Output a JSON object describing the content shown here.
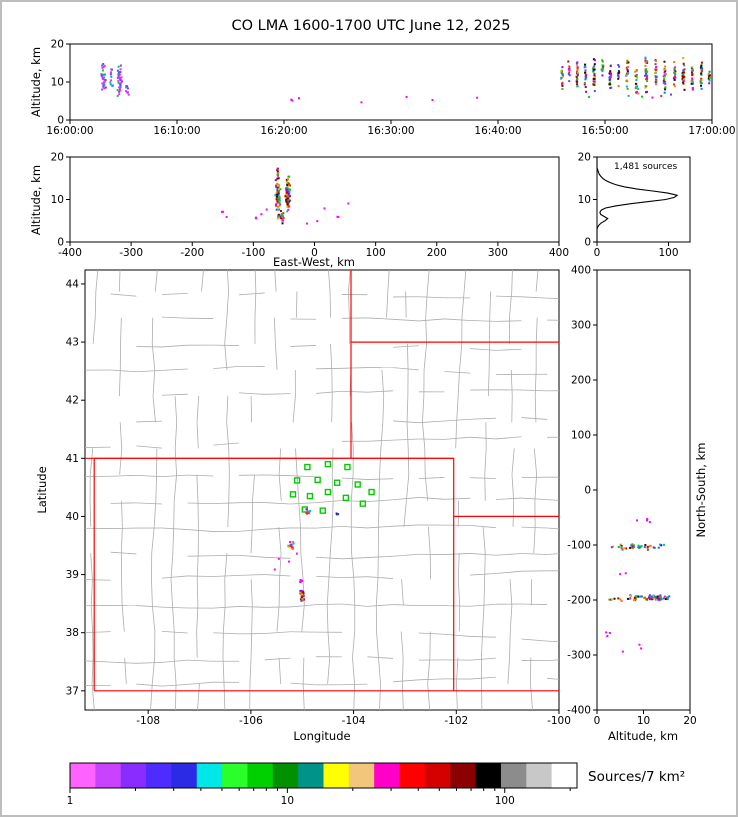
{
  "title": "CO LMA 1600-1700 UTC June 12, 2025",
  "labels": {
    "altitude_km": "Altitude, km",
    "east_west_km": "East-West, km",
    "north_south_km": "North-South, km",
    "longitude": "Longitude",
    "latitude": "Latitude",
    "sources_count": "1,481 sources",
    "colorbar_label": "Sources/7 km²"
  },
  "chart_data": {
    "palettes": {
      "multi": [
        "#FF00FF",
        "#9900EE",
        "#5544FF",
        "#0077FF",
        "#00BBBB",
        "#00CC00",
        "#55AA00",
        "#DDAA00",
        "#FF7700",
        "#FF2200",
        "#BB0000",
        "#550000",
        "#111111"
      ],
      "early": [
        "#FF22FF",
        "#FF22FF",
        "#CC33FF",
        "#8833FF",
        "#4455FF",
        "#00AADD",
        "#00CC44"
      ],
      "magenta": [
        "#FF00FF"
      ],
      "dark": [
        "#222288",
        "#000000",
        "#3333AA"
      ]
    },
    "time_altitude": {
      "type": "scatter",
      "xlim": [
        0,
        3600
      ],
      "xticks": [
        0,
        600,
        1200,
        1800,
        2400,
        3000,
        3600
      ],
      "xtick_labels": [
        "16:00:00",
        "16:10:00",
        "16:20:00",
        "16:30:00",
        "16:40:00",
        "16:50:00",
        "17:00:00"
      ],
      "ylim": [
        0,
        20
      ],
      "yticks": [
        0,
        10,
        20
      ],
      "clusters": [
        {
          "x": 190,
          "sx": 10,
          "y": 10,
          "sy": 4,
          "n": 30,
          "pal": "early"
        },
        {
          "x": 232,
          "sx": 6,
          "y": 12,
          "sy": 2.5,
          "n": 10,
          "pal": "early"
        },
        {
          "x": 278,
          "sx": 10,
          "y": 11,
          "sy": 3.8,
          "n": 32,
          "pal": "early"
        },
        {
          "x": 322,
          "sx": 6,
          "y": 8,
          "sy": 2.2,
          "n": 8,
          "pal": "early"
        },
        {
          "x": 1260,
          "sx": 30,
          "y": 5.5,
          "sy": 1,
          "n": 3,
          "pal": "magenta"
        },
        {
          "x": 2060,
          "sx": 400,
          "y": 5.8,
          "sy": 1.2,
          "n": 4,
          "pal": "magenta"
        },
        {
          "x": 2760,
          "sx": 5,
          "y": 11.5,
          "sy": 2.6,
          "n": 14,
          "pal": "multi"
        },
        {
          "x": 2800,
          "sx": 4,
          "y": 13,
          "sy": 2,
          "n": 10,
          "pal": "multi"
        },
        {
          "x": 2845,
          "sx": 5,
          "y": 12,
          "sy": 3,
          "n": 22,
          "pal": "multi"
        },
        {
          "x": 2890,
          "sx": 4,
          "y": 11,
          "sy": 3,
          "n": 16,
          "pal": "multi"
        },
        {
          "x": 2940,
          "sx": 5,
          "y": 12,
          "sy": 3.2,
          "n": 26,
          "pal": "multi"
        },
        {
          "x": 2985,
          "sx": 4,
          "y": 13,
          "sy": 2.2,
          "n": 14,
          "pal": "multi"
        },
        {
          "x": 3030,
          "sx": 5,
          "y": 11.5,
          "sy": 3,
          "n": 20,
          "pal": "multi"
        },
        {
          "x": 3075,
          "sx": 4,
          "y": 12.5,
          "sy": 2.5,
          "n": 12,
          "pal": "multi"
        },
        {
          "x": 3125,
          "sx": 5,
          "y": 12,
          "sy": 3.2,
          "n": 24,
          "pal": "multi"
        },
        {
          "x": 3175,
          "sx": 4,
          "y": 11,
          "sy": 2.8,
          "n": 18,
          "pal": "multi"
        },
        {
          "x": 3230,
          "sx": 5,
          "y": 12,
          "sy": 3.3,
          "n": 28,
          "pal": "multi"
        },
        {
          "x": 3285,
          "sx": 4,
          "y": 12.5,
          "sy": 2.8,
          "n": 20,
          "pal": "multi"
        },
        {
          "x": 3335,
          "sx": 5,
          "y": 11.5,
          "sy": 3.2,
          "n": 24,
          "pal": "multi"
        },
        {
          "x": 3390,
          "sx": 4,
          "y": 12,
          "sy": 2.6,
          "n": 18,
          "pal": "multi"
        },
        {
          "x": 3440,
          "sx": 5,
          "y": 12,
          "sy": 3.2,
          "n": 26,
          "pal": "multi"
        },
        {
          "x": 3490,
          "sx": 4,
          "y": 11.5,
          "sy": 3,
          "n": 20,
          "pal": "multi"
        },
        {
          "x": 3540,
          "sx": 4,
          "y": 12,
          "sy": 3,
          "n": 24,
          "pal": "multi"
        },
        {
          "x": 3585,
          "sx": 3,
          "y": 12,
          "sy": 2.5,
          "n": 14,
          "pal": "multi"
        },
        {
          "x": 3250,
          "sx": 330,
          "y": 6.8,
          "sy": 1.1,
          "n": 10,
          "pal": "multi"
        }
      ]
    },
    "ew_altitude": {
      "type": "scatter",
      "xlim": [
        -400,
        400
      ],
      "xticks": [
        -400,
        -300,
        -200,
        -100,
        0,
        100,
        200,
        300,
        400
      ],
      "ylim": [
        0,
        20
      ],
      "yticks": [
        0,
        10,
        20
      ],
      "clusters": [
        {
          "x": -60,
          "sx": 3.5,
          "y": 11,
          "sy": 3.2,
          "n": 70,
          "pal": "multi"
        },
        {
          "x": -44,
          "sx": 3,
          "y": 11.5,
          "sy": 3,
          "n": 85,
          "pal": "multi"
        },
        {
          "x": -52,
          "sx": 7,
          "y": 6.2,
          "sy": 1.4,
          "n": 22,
          "pal": "multi"
        },
        {
          "x": -60,
          "sx": 2,
          "y": 16.5,
          "sy": 0.8,
          "n": 8,
          "pal": "multi"
        },
        {
          "x": -150,
          "sx": 1,
          "y": 7,
          "sy": 0.4,
          "n": 2,
          "pal": "magenta"
        },
        {
          "x": -143,
          "sx": 1,
          "y": 6.2,
          "sy": 0.3,
          "n": 1,
          "pal": "magenta"
        },
        {
          "x": -96,
          "sx": 1,
          "y": 5.7,
          "sy": 0.3,
          "n": 2,
          "pal": "magenta"
        },
        {
          "x": -86,
          "sx": 1,
          "y": 6.3,
          "sy": 0.3,
          "n": 1,
          "pal": "magenta"
        },
        {
          "x": -78,
          "sx": 1,
          "y": 7.6,
          "sy": 0.3,
          "n": 1,
          "pal": "magenta"
        },
        {
          "x": 16,
          "sx": 1,
          "y": 8,
          "sy": 0.3,
          "n": 1,
          "pal": "magenta"
        },
        {
          "x": 38,
          "sx": 1,
          "y": 6,
          "sy": 0.3,
          "n": 2,
          "pal": "magenta"
        },
        {
          "x": 55,
          "sx": 1,
          "y": 9,
          "sy": 0.3,
          "n": 1,
          "pal": "magenta"
        },
        {
          "x": 5,
          "sx": 1,
          "y": 5,
          "sy": 0.3,
          "n": 1,
          "pal": "magenta"
        },
        {
          "x": -12,
          "sx": 1,
          "y": 4.6,
          "sy": 0.3,
          "n": 1,
          "pal": "magenta"
        }
      ]
    },
    "histogram": {
      "type": "line",
      "xlim": [
        0,
        130
      ],
      "xticks": [
        0,
        100
      ],
      "ylim": [
        0,
        20
      ],
      "yticks": [
        0,
        10,
        20
      ],
      "alts": [
        0,
        3,
        3.5,
        4,
        4.5,
        5,
        5.5,
        6,
        6.5,
        7,
        7.5,
        8,
        8.5,
        9,
        9.5,
        10,
        10.5,
        11,
        11.5,
        12,
        12.5,
        13,
        13.5,
        14,
        14.5,
        15,
        15.5,
        16,
        16.5,
        17,
        17.5,
        18,
        20
      ],
      "counts": [
        0,
        0,
        1,
        3,
        6,
        11,
        15,
        10,
        5,
        4,
        6,
        12,
        26,
        46,
        72,
        96,
        108,
        112,
        99,
        78,
        55,
        38,
        26,
        18,
        12,
        8,
        5,
        3,
        2,
        1,
        0,
        0,
        0
      ]
    },
    "map": {
      "type": "scatter",
      "xlim": [
        -109.23,
        -100.0
      ],
      "xticks": [
        -108,
        -106,
        -104,
        -102,
        -100
      ],
      "ylim": [
        36.67,
        44.24
      ],
      "yticks": [
        37,
        38,
        39,
        40,
        41,
        42,
        43,
        44
      ],
      "counties": {
        "v_step": 0.5,
        "h_step": 0.45,
        "jitter": 0.1,
        "skip": 0.22,
        "color": "#ADADAD",
        "seed": 7
      },
      "border_color": "#FF0000",
      "station_color": "#00CC00",
      "state_lines": [
        [
          [
            -109.05,
            37
          ],
          [
            -102.05,
            37
          ],
          [
            -102.05,
            41
          ],
          [
            -109.05,
            41
          ],
          [
            -109.05,
            37
          ]
        ],
        [
          [
            -109.23,
            41
          ],
          [
            -102.05,
            41
          ]
        ],
        [
          [
            -104.05,
            41
          ],
          [
            -104.05,
            44.24
          ]
        ],
        [
          [
            -104.05,
            43
          ],
          [
            -100.0,
            43
          ]
        ],
        [
          [
            -102.05,
            40
          ],
          [
            -100.0,
            40
          ]
        ],
        [
          [
            -102.05,
            37
          ],
          [
            -100.0,
            37
          ]
        ]
      ],
      "stations": [
        [
          -104.9,
          40.85
        ],
        [
          -104.5,
          40.9
        ],
        [
          -104.12,
          40.85
        ],
        [
          -105.1,
          40.62
        ],
        [
          -104.7,
          40.63
        ],
        [
          -104.32,
          40.58
        ],
        [
          -103.92,
          40.55
        ],
        [
          -105.18,
          40.38
        ],
        [
          -104.85,
          40.35
        ],
        [
          -104.5,
          40.42
        ],
        [
          -104.15,
          40.32
        ],
        [
          -103.82,
          40.22
        ],
        [
          -104.95,
          40.12
        ],
        [
          -104.6,
          40.1
        ],
        [
          -103.65,
          40.42
        ]
      ],
      "clusters": [
        {
          "x": -105.22,
          "sx": 0.04,
          "y": 39.5,
          "sy": 0.05,
          "n": 16,
          "pal": "multi"
        },
        {
          "x": -105.0,
          "sx": 0.035,
          "y": 38.66,
          "sy": 0.08,
          "n": 34,
          "pal": "multi"
        },
        {
          "x": -105.02,
          "sx": 0.02,
          "y": 38.9,
          "sy": 0.04,
          "n": 5,
          "pal": "magenta"
        },
        {
          "x": -104.88,
          "sx": 0.04,
          "y": 40.08,
          "sy": 0.04,
          "n": 7,
          "pal": "multi"
        },
        {
          "x": -104.32,
          "sx": 0.02,
          "y": 40.05,
          "sy": 0.02,
          "n": 3,
          "pal": "dark"
        },
        {
          "x": -105.3,
          "sx": 0.4,
          "y": 39.2,
          "sy": 0.4,
          "n": 4,
          "pal": "magenta"
        }
      ]
    },
    "ns_altitude": {
      "type": "scatter",
      "xlim": [
        0,
        20
      ],
      "xticks": [
        0,
        10,
        20
      ],
      "ylim": [
        -400,
        400
      ],
      "yticks": [
        -400,
        -300,
        -200,
        -100,
        0,
        100,
        200,
        300,
        400
      ],
      "clusters": [
        {
          "x": 9,
          "sx": 4.5,
          "y": -104,
          "sy": 4,
          "n": 40,
          "pal": "multi"
        },
        {
          "x": 12,
          "sx": 3.5,
          "y": -195,
          "sy": 4,
          "n": 60,
          "pal": "multi"
        },
        {
          "x": 6,
          "sx": 2.5,
          "y": -199,
          "sy": 3,
          "n": 14,
          "pal": "multi"
        },
        {
          "x": 10,
          "sx": 1.5,
          "y": -56,
          "sy": 3,
          "n": 4,
          "pal": "magenta"
        },
        {
          "x": 8,
          "sx": 5,
          "y": -278,
          "sy": 18,
          "n": 6,
          "pal": "magenta"
        },
        {
          "x": 4,
          "sx": 1.5,
          "y": -150,
          "sy": 4,
          "n": 2,
          "pal": "magenta"
        }
      ]
    },
    "colorbar": {
      "scale": "log",
      "domain": [
        1,
        215
      ],
      "major_ticks": [
        1,
        10,
        100
      ],
      "minor_ticks": [
        2,
        3,
        4,
        5,
        6,
        7,
        8,
        9,
        20,
        30,
        40,
        50,
        60,
        70,
        80,
        90,
        200
      ],
      "colors": [
        "#FF63FF",
        "#C943FF",
        "#8A2BFF",
        "#4E2BFF",
        "#2B2BE6",
        "#00E7E7",
        "#2BFF2B",
        "#00D000",
        "#009000",
        "#00938A",
        "#FFFF00",
        "#F3C77B",
        "#FF00C8",
        "#FF0000",
        "#D40000",
        "#8B0000",
        "#000000",
        "#8C8C8C",
        "#C8C8C8",
        "#FFFFFF"
      ]
    }
  }
}
